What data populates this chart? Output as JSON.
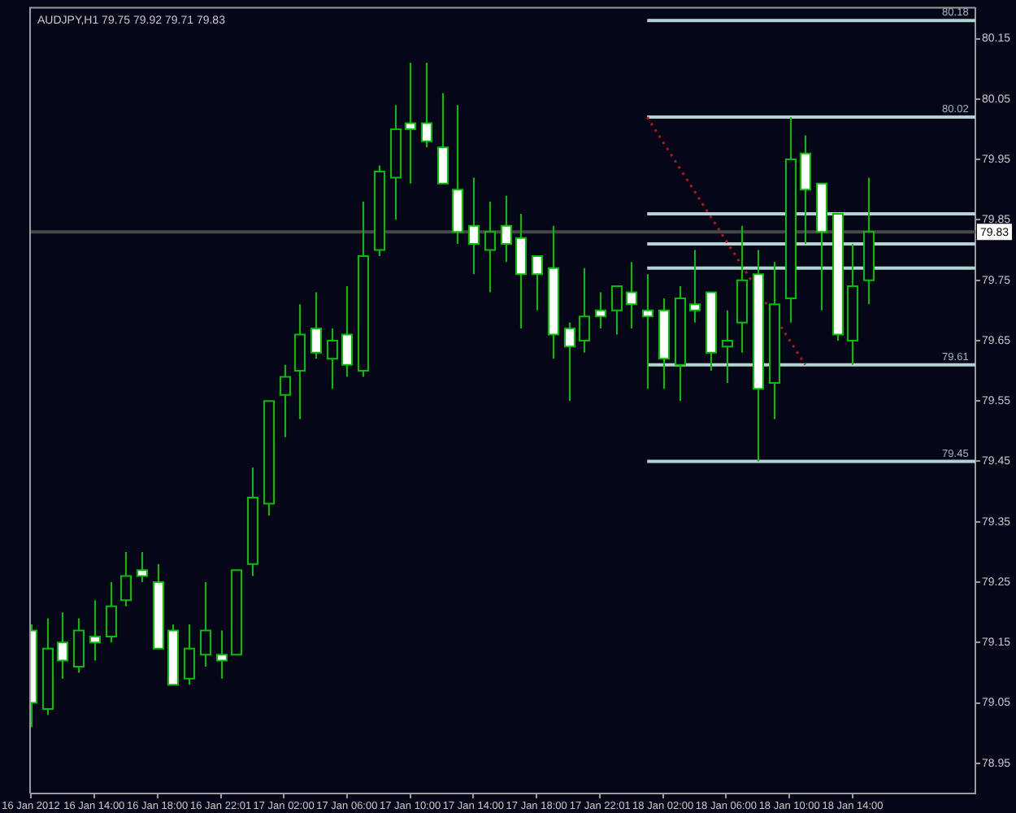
{
  "chart_data": {
    "type": "candlestick",
    "title": "AUDJPY,H1 79.75 79.92 79.71 79.83",
    "color": "#00c000",
    "x": [
      "2012-01-16T10:00",
      "2012-01-16T11:00",
      "2012-01-16T12:00",
      "2012-01-16T13:00",
      "2012-01-16T14:00",
      "2012-01-16T15:00",
      "2012-01-16T16:00",
      "2012-01-16T17:00",
      "2012-01-16T18:00",
      "2012-01-16T19:00",
      "2012-01-16T20:00",
      "2012-01-16T21:00",
      "2012-01-16T22:01",
      "2012-01-16T23:00",
      "2012-01-17T00:00",
      "2012-01-17T01:00",
      "2012-01-17T02:00",
      "2012-01-17T03:00",
      "2012-01-17T04:00",
      "2012-01-17T05:00",
      "2012-01-17T06:00",
      "2012-01-17T07:00",
      "2012-01-17T08:00",
      "2012-01-17T09:00",
      "2012-01-17T10:00",
      "2012-01-17T11:00",
      "2012-01-17T12:00",
      "2012-01-17T13:00",
      "2012-01-17T14:00",
      "2012-01-17T15:00",
      "2012-01-17T16:00",
      "2012-01-17T17:00",
      "2012-01-17T18:00",
      "2012-01-17T19:00",
      "2012-01-17T20:00",
      "2012-01-17T21:00",
      "2012-01-17T22:01",
      "2012-01-17T23:00",
      "2012-01-18T00:00",
      "2012-01-18T01:00",
      "2012-01-18T02:00",
      "2012-01-18T03:00",
      "2012-01-18T04:00",
      "2012-01-18T05:00",
      "2012-01-18T06:00",
      "2012-01-18T07:00",
      "2012-01-18T08:00",
      "2012-01-18T09:00",
      "2012-01-18T10:00",
      "2012-01-18T11:00",
      "2012-01-18T12:00",
      "2012-01-18T13:00",
      "2012-01-18T14:00",
      "2012-01-18T15:00"
    ],
    "ohlc": [
      [
        79.17,
        79.18,
        79.01,
        79.05
      ],
      [
        79.04,
        79.19,
        79.03,
        79.14
      ],
      [
        79.15,
        79.2,
        79.09,
        79.12
      ],
      [
        79.11,
        79.19,
        79.1,
        79.17
      ],
      [
        79.16,
        79.22,
        79.12,
        79.15
      ],
      [
        79.16,
        79.25,
        79.15,
        79.21
      ],
      [
        79.22,
        79.3,
        79.21,
        79.26
      ],
      [
        79.27,
        79.3,
        79.25,
        79.26
      ],
      [
        79.25,
        79.28,
        79.14,
        79.14
      ],
      [
        79.17,
        79.18,
        79.08,
        79.08
      ],
      [
        79.09,
        79.18,
        79.08,
        79.14
      ],
      [
        79.13,
        79.25,
        79.11,
        79.17
      ],
      [
        79.13,
        79.17,
        79.09,
        79.12
      ],
      [
        79.13,
        79.27,
        79.13,
        79.27
      ],
      [
        79.28,
        79.44,
        79.26,
        79.39
      ],
      [
        79.38,
        79.55,
        79.36,
        79.55
      ],
      [
        79.56,
        79.61,
        79.49,
        79.59
      ],
      [
        79.6,
        79.71,
        79.52,
        79.66
      ],
      [
        79.67,
        79.73,
        79.62,
        79.63
      ],
      [
        79.62,
        79.67,
        79.57,
        79.65
      ],
      [
        79.66,
        79.74,
        79.59,
        79.61
      ],
      [
        79.6,
        79.88,
        79.59,
        79.79
      ],
      [
        79.8,
        79.94,
        79.79,
        79.93
      ],
      [
        79.92,
        80.04,
        79.85,
        80.0
      ],
      [
        80.01,
        80.11,
        79.91,
        80.0
      ],
      [
        80.01,
        80.11,
        79.97,
        79.98
      ],
      [
        79.97,
        80.06,
        79.91,
        79.91
      ],
      [
        79.9,
        80.04,
        79.81,
        79.83
      ],
      [
        79.84,
        79.92,
        79.76,
        79.81
      ],
      [
        79.8,
        79.88,
        79.73,
        79.83
      ],
      [
        79.84,
        79.89,
        79.78,
        79.81
      ],
      [
        79.82,
        79.86,
        79.67,
        79.76
      ],
      [
        79.79,
        79.79,
        79.7,
        79.76
      ],
      [
        79.77,
        79.84,
        79.62,
        79.66
      ],
      [
        79.67,
        79.68,
        79.55,
        79.64
      ],
      [
        79.65,
        79.77,
        79.63,
        79.69
      ],
      [
        79.7,
        79.73,
        79.67,
        79.69
      ],
      [
        79.7,
        79.74,
        79.66,
        79.74
      ],
      [
        79.73,
        79.78,
        79.67,
        79.71
      ],
      [
        79.7,
        79.76,
        79.57,
        79.69
      ],
      [
        79.7,
        79.72,
        79.57,
        79.62
      ],
      [
        79.61,
        79.74,
        79.55,
        79.72
      ],
      [
        79.71,
        79.8,
        79.68,
        79.7
      ],
      [
        79.73,
        79.73,
        79.6,
        79.63
      ],
      [
        79.64,
        79.7,
        79.58,
        79.65
      ],
      [
        79.68,
        79.84,
        79.63,
        79.75
      ],
      [
        79.76,
        79.8,
        79.45,
        79.57
      ],
      [
        79.58,
        79.78,
        79.52,
        79.71
      ],
      [
        79.72,
        80.02,
        79.68,
        79.95
      ],
      [
        79.96,
        79.99,
        79.81,
        79.9
      ],
      [
        79.91,
        79.91,
        79.7,
        79.83
      ],
      [
        79.86,
        79.86,
        79.65,
        79.66
      ],
      [
        79.65,
        79.81,
        79.61,
        79.74
      ],
      [
        79.75,
        79.92,
        79.71,
        79.83
      ]
    ],
    "series": [
      {
        "type": "line",
        "x": [
          "2012-01-18T01:00",
          "2012-01-18T21:46"
        ],
        "values": [
          80.18,
          80.18
        ],
        "color": "#b4d4d4"
      },
      {
        "type": "line",
        "x": [
          "2012-01-18T01:00",
          "2012-01-18T21:46"
        ],
        "values": [
          80.02,
          80.02
        ],
        "color": "#b4d4d4"
      },
      {
        "type": "line",
        "x": [
          "2012-01-18T01:00",
          "2012-01-18T21:46"
        ],
        "values": [
          79.86,
          79.86
        ],
        "color": "#b4d4d4"
      },
      {
        "type": "line",
        "x": [
          "2012-01-18T01:00",
          "2012-01-18T21:46"
        ],
        "values": [
          79.81,
          79.81
        ],
        "color": "#b4d4d4"
      },
      {
        "type": "line",
        "x": [
          "2012-01-18T01:00",
          "2012-01-18T21:46"
        ],
        "values": [
          79.77,
          79.77
        ],
        "color": "#b4d4d4"
      },
      {
        "type": "line",
        "x": [
          "2012-01-18T01:00",
          "2012-01-18T21:46"
        ],
        "values": [
          79.61,
          79.61
        ],
        "color": "#b4d4d4"
      },
      {
        "type": "line",
        "x": [
          "2012-01-18T01:00",
          "2012-01-18T21:46"
        ],
        "values": [
          79.45,
          79.45
        ],
        "color": "#b4d4d4"
      },
      {
        "type": "line",
        "x": [
          "2012-01-18T01:00",
          "2012-01-18T11:00"
        ],
        "values": [
          80.02,
          79.61
        ],
        "color": "#b01818",
        "line_style": "dotted"
      }
    ],
    "ref_lines": [
      {
        "axis": "y",
        "value": 79.83,
        "label": "79.83",
        "color": "#484848"
      }
    ],
    "annotations": [
      {
        "text": "80.18",
        "x": "2012-01-18T20:30",
        "y": 80.18
      },
      {
        "text": "80.02",
        "x": "2012-01-18T20:30",
        "y": 80.02
      },
      {
        "text": "79.61",
        "x": "2012-01-18T20:30",
        "y": 79.61
      },
      {
        "text": "79.45",
        "x": "2012-01-18T20:30",
        "y": 79.45
      }
    ],
    "xlim": [
      "2012-01-16T10:00",
      "2012-01-18T21:46"
    ],
    "xticks": [
      {
        "value": "2012-01-16T10:00",
        "label": "16 Jan 2012"
      },
      {
        "value": "2012-01-16T14:00",
        "label": "16 Jan 14:00"
      },
      {
        "value": "2012-01-16T18:00",
        "label": "16 Jan 18:00"
      },
      {
        "value": "2012-01-16T22:01",
        "label": "16 Jan 22:01"
      },
      {
        "value": "2012-01-17T02:00",
        "label": "17 Jan 02:00"
      },
      {
        "value": "2012-01-17T06:00",
        "label": "17 Jan 06:00"
      },
      {
        "value": "2012-01-17T10:00",
        "label": "17 Jan 10:00"
      },
      {
        "value": "2012-01-17T14:00",
        "label": "17 Jan 14:00"
      },
      {
        "value": "2012-01-17T18:00",
        "label": "17 Jan 18:00"
      },
      {
        "value": "2012-01-17T22:01",
        "label": "17 Jan 22:01"
      },
      {
        "value": "2012-01-18T02:00",
        "label": "18 Jan 02:00"
      },
      {
        "value": "2012-01-18T06:00",
        "label": "18 Jan 06:00"
      },
      {
        "value": "2012-01-18T10:00",
        "label": "18 Jan 10:00"
      },
      {
        "value": "2012-01-18T14:00",
        "label": "18 Jan 14:00"
      }
    ],
    "ylim": [
      78.9,
      80.2
    ],
    "yticks": [
      78.95,
      79.05,
      79.15,
      79.25,
      79.35,
      79.45,
      79.55,
      79.65,
      79.75,
      79.85,
      79.95,
      80.05,
      80.15
    ]
  }
}
